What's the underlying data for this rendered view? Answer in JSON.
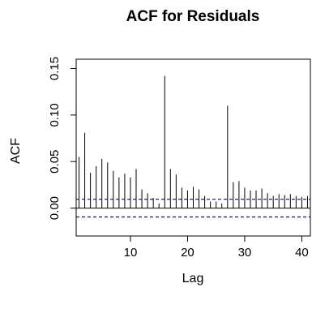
{
  "chart_data": {
    "type": "bar",
    "title": "ACF for Residuals",
    "xlabel": "Lag",
    "ylabel": "ACF",
    "xlim": [
      0.5,
      41.5
    ],
    "ylim": [
      -0.03,
      0.16
    ],
    "x_ticks": [
      10,
      20,
      30,
      40
    ],
    "y_ticks": [
      0.0,
      0.05,
      0.1,
      0.15
    ],
    "x_tick_labels": [
      "10",
      "20",
      "30",
      "40"
    ],
    "y_tick_labels": [
      "0.00",
      "0.05",
      "0.10",
      "0.15"
    ],
    "lags": [
      1,
      2,
      3,
      4,
      5,
      6,
      7,
      8,
      9,
      10,
      11,
      12,
      13,
      14,
      15,
      16,
      17,
      18,
      19,
      20,
      21,
      22,
      23,
      24,
      25,
      26,
      27,
      28,
      29,
      30,
      31,
      32,
      33,
      34,
      35,
      36,
      37,
      38,
      39,
      40,
      41
    ],
    "values": [
      0.055,
      0.081,
      0.038,
      0.045,
      0.053,
      0.049,
      0.04,
      0.033,
      0.037,
      0.033,
      0.042,
      0.02,
      0.016,
      0.011,
      0.005,
      0.142,
      0.042,
      0.036,
      0.022,
      0.019,
      0.023,
      0.02,
      0.013,
      0.007,
      0.007,
      0.005,
      0.11,
      0.028,
      0.029,
      0.022,
      0.019,
      0.019,
      0.021,
      0.016,
      0.013,
      0.015,
      0.014,
      0.015,
      0.013,
      0.012,
      0.013
    ],
    "confidence_bound": 0.0095,
    "bound_color": "#0000ee",
    "grid": false
  }
}
